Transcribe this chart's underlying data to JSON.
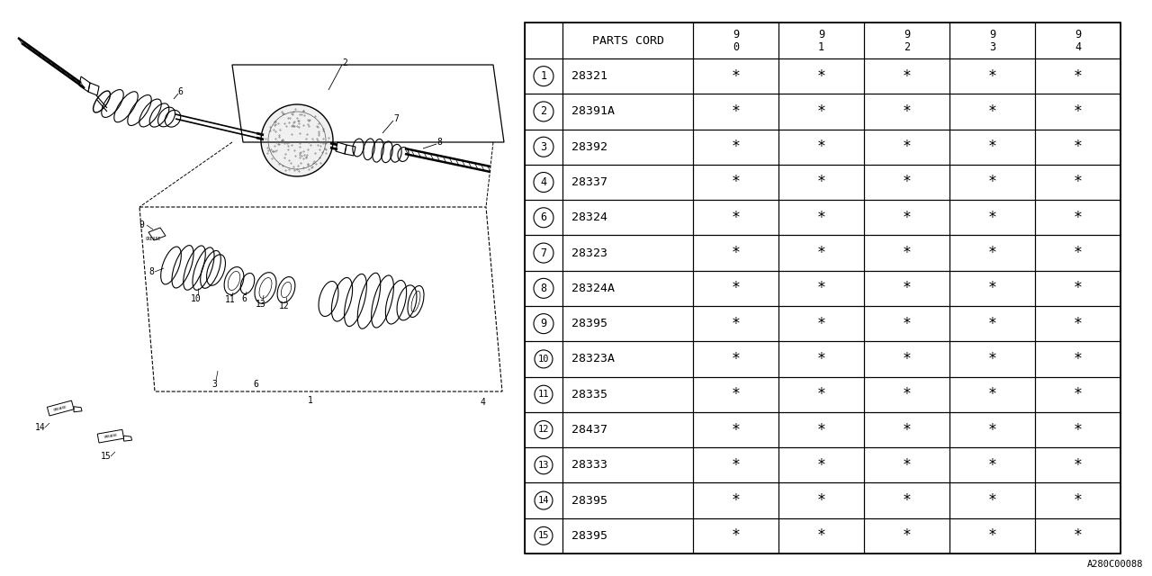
{
  "bg_color": "#ffffff",
  "diagram_code": "A280C00088",
  "table": {
    "header_label": "PARTS CORD",
    "year_cols": [
      "9\n0",
      "9\n1",
      "9\n2",
      "9\n3",
      "9\n4"
    ],
    "rows": [
      {
        "num": "1",
        "part": "28321",
        "marks": [
          "*",
          "*",
          "*",
          "*",
          "*"
        ]
      },
      {
        "num": "2",
        "part": "28391A",
        "marks": [
          "*",
          "*",
          "*",
          "*",
          "*"
        ]
      },
      {
        "num": "3",
        "part": "28392",
        "marks": [
          "*",
          "*",
          "*",
          "*",
          "*"
        ]
      },
      {
        "num": "4",
        "part": "28337",
        "marks": [
          "*",
          "*",
          "*",
          "*",
          "*"
        ]
      },
      {
        "num": "6",
        "part": "28324",
        "marks": [
          "*",
          "*",
          "*",
          "*",
          "*"
        ]
      },
      {
        "num": "7",
        "part": "28323",
        "marks": [
          "*",
          "*",
          "*",
          "*",
          "*"
        ]
      },
      {
        "num": "8",
        "part": "28324A",
        "marks": [
          "*",
          "*",
          "*",
          "*",
          "*"
        ]
      },
      {
        "num": "9",
        "part": "28395",
        "marks": [
          "*",
          "*",
          "*",
          "*",
          "*"
        ]
      },
      {
        "num": "10",
        "part": "28323A",
        "marks": [
          "*",
          "*",
          "*",
          "*",
          "*"
        ]
      },
      {
        "num": "11",
        "part": "28335",
        "marks": [
          "*",
          "*",
          "*",
          "*",
          "*"
        ]
      },
      {
        "num": "12",
        "part": "28437",
        "marks": [
          "*",
          "*",
          "*",
          "*",
          "*"
        ]
      },
      {
        "num": "13",
        "part": "28333",
        "marks": [
          "*",
          "*",
          "*",
          "*",
          "*"
        ]
      },
      {
        "num": "14",
        "part": "28395",
        "marks": [
          "*",
          "*",
          "*",
          "*",
          "*"
        ]
      },
      {
        "num": "15",
        "part": "28395",
        "marks": [
          "*",
          "*",
          "*",
          "*",
          "*"
        ]
      }
    ]
  }
}
